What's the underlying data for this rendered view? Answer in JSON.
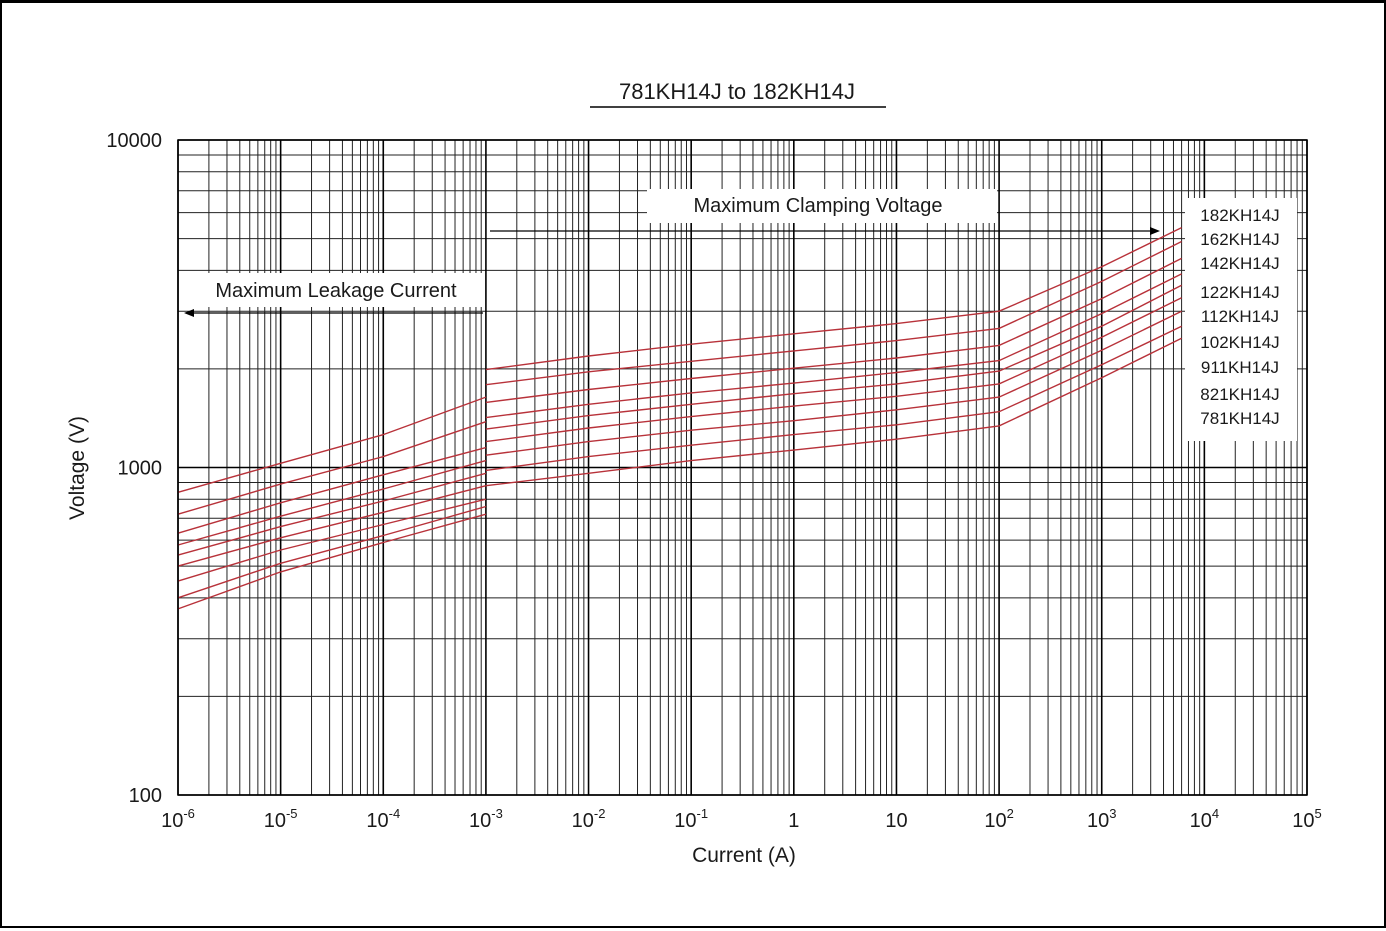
{
  "chart_data": {
    "type": "line",
    "title": "781KH14J to 182KH14J",
    "xlabel": "Current (A)",
    "ylabel": "Voltage (V)",
    "x_scale": "log",
    "y_scale": "log",
    "xlim": [
      1e-06,
      100000
    ],
    "ylim": [
      100,
      10000
    ],
    "grid": true,
    "x_ticks": [
      {
        "base": "10",
        "exp": "-6"
      },
      {
        "base": "10",
        "exp": "-5"
      },
      {
        "base": "10",
        "exp": "-4"
      },
      {
        "base": "10",
        "exp": "-3"
      },
      {
        "base": "10",
        "exp": "-2"
      },
      {
        "base": "10",
        "exp": "-1"
      },
      {
        "base": "1",
        "exp": ""
      },
      {
        "base": "10",
        "exp": ""
      },
      {
        "base": "10",
        "exp": "2"
      },
      {
        "base": "10",
        "exp": "3"
      },
      {
        "base": "10",
        "exp": "4"
      },
      {
        "base": "10",
        "exp": "5"
      }
    ],
    "y_ticks": [
      "100",
      "1000",
      "10000"
    ],
    "annotations": {
      "leakage": "Maximum Leakage Current",
      "clamping": "Maximum Clamping Voltage"
    },
    "legend_position": "right",
    "series_color": "#b8323a",
    "leakage_x": [
      1e-06,
      1e-05,
      0.0001,
      0.001
    ],
    "clamping_x": [
      0.001,
      0.01,
      0.1,
      1,
      10,
      100,
      1000,
      6000
    ],
    "series": [
      {
        "name": "182KH14J",
        "leakage": [
          840,
          1030,
          1260,
          1640
        ],
        "clamping": [
          1990,
          2190,
          2380,
          2560,
          2750,
          3000,
          4100,
          5400
        ]
      },
      {
        "name": "162KH14J",
        "leakage": [
          720,
          890,
          1080,
          1380
        ],
        "clamping": [
          1790,
          1960,
          2110,
          2270,
          2440,
          2660,
          3700,
          4900
        ]
      },
      {
        "name": "142KH14J",
        "leakage": [
          630,
          780,
          950,
          1150
        ],
        "clamping": [
          1580,
          1730,
          1870,
          2010,
          2160,
          2360,
          3280,
          4350
        ]
      },
      {
        "name": "122KH14J",
        "leakage": [
          580,
          710,
          860,
          1050
        ],
        "clamping": [
          1420,
          1560,
          1690,
          1810,
          1950,
          2120,
          2950,
          3900
        ]
      },
      {
        "name": "112KH14J",
        "leakage": [
          540,
          660,
          790,
          960
        ],
        "clamping": [
          1310,
          1440,
          1560,
          1680,
          1800,
          1970,
          2700,
          3600
        ]
      },
      {
        "name": "102KH14J",
        "leakage": [
          500,
          610,
          730,
          880
        ],
        "clamping": [
          1200,
          1320,
          1430,
          1540,
          1650,
          1800,
          2500,
          3300
        ]
      },
      {
        "name": "911KH14J",
        "leakage": [
          450,
          560,
          670,
          800
        ],
        "clamping": [
          1090,
          1200,
          1300,
          1390,
          1500,
          1640,
          2280,
          3000
        ]
      },
      {
        "name": "821KH14J",
        "leakage": [
          400,
          510,
          620,
          760
        ],
        "clamping": [
          980,
          1080,
          1170,
          1260,
          1350,
          1480,
          2060,
          2700
        ]
      },
      {
        "name": "781KH14J",
        "leakage": [
          370,
          480,
          590,
          720
        ],
        "clamping": [
          880,
          960,
          1050,
          1130,
          1220,
          1340,
          1880,
          2480
        ]
      }
    ]
  }
}
